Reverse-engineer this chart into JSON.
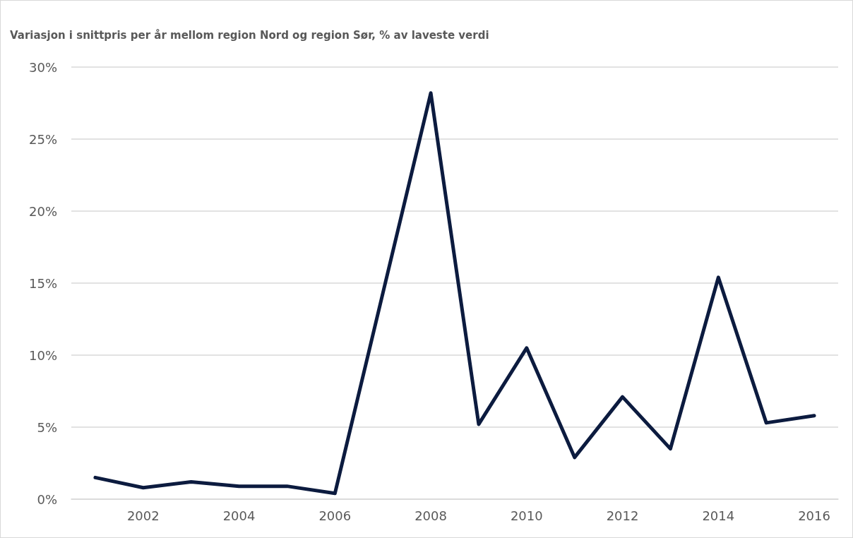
{
  "chart_data": {
    "type": "line",
    "title": "Variasjon i snittpris per år mellom region Nord og region Sør, % av laveste verdi",
    "categories": [
      null,
      "2002",
      null,
      "2004",
      null,
      "2006",
      null,
      "2008",
      null,
      "2010",
      null,
      "2012",
      null,
      "2014",
      null,
      "2016"
    ],
    "series": [
      {
        "color": "#0c1b3f",
        "values": [
          1.5,
          0.8,
          1.2,
          0.9,
          0.9,
          0.4,
          14.3,
          28.2,
          5.2,
          10.5,
          2.9,
          7.1,
          3.5,
          15.4,
          5.3,
          5.8
        ]
      }
    ],
    "ylim": [
      0,
      30
    ],
    "yticks": [
      {
        "value": 0,
        "label": "0%"
      },
      {
        "value": 5,
        "label": "5%"
      },
      {
        "value": 10,
        "label": "10%"
      },
      {
        "value": 15,
        "label": "15%"
      },
      {
        "value": 20,
        "label": "20%"
      },
      {
        "value": 25,
        "label": "25%"
      },
      {
        "value": 30,
        "label": "30%"
      }
    ],
    "grid": "y",
    "marker": "none",
    "line_style": "solid"
  }
}
